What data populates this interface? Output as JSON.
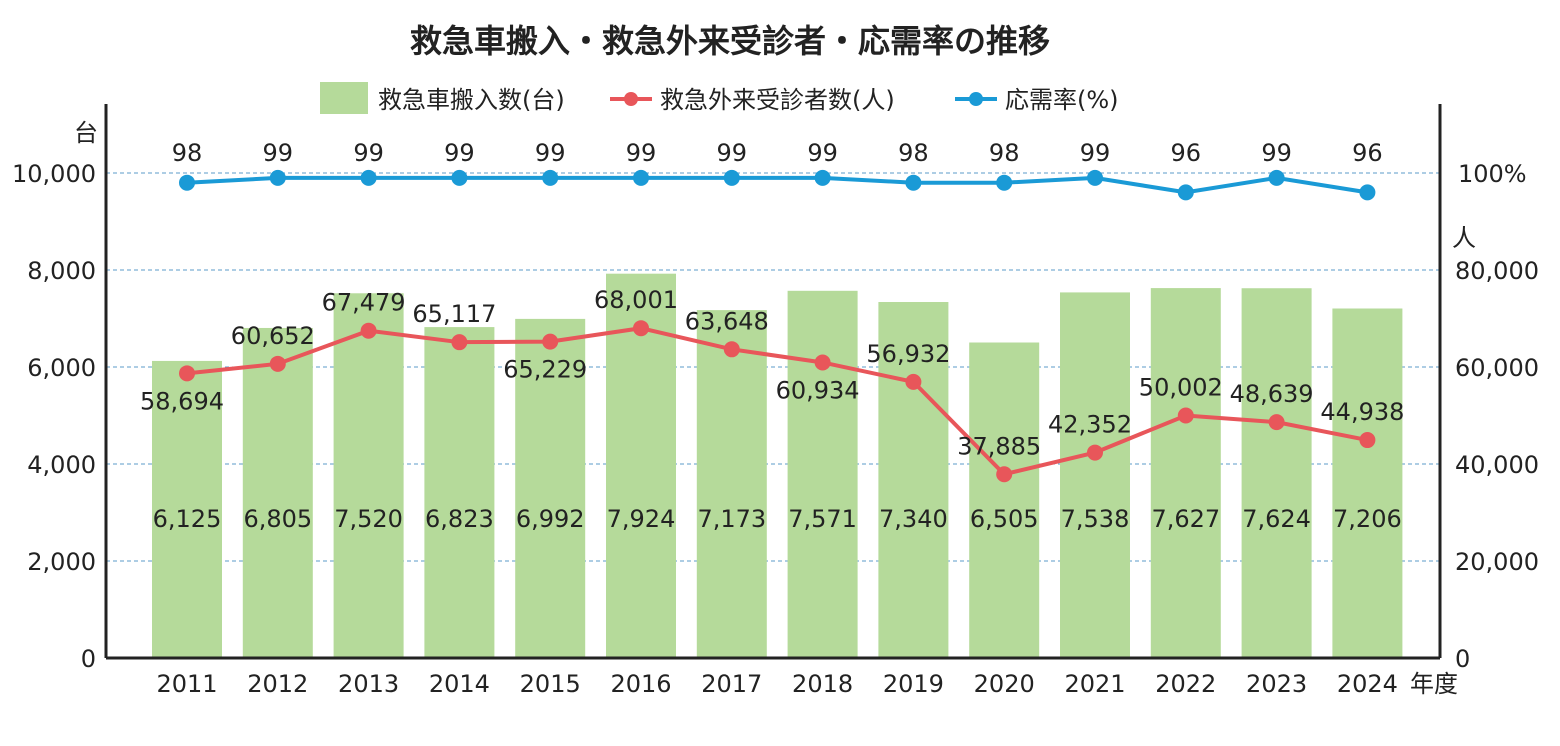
{
  "chart_data": {
    "type": "bar+line",
    "title": "救急車搬入・救急外来受診者・応需率の推移",
    "categories": [
      "2011",
      "2012",
      "2013",
      "2014",
      "2015",
      "2016",
      "2017",
      "2018",
      "2019",
      "2020",
      "2021",
      "2022",
      "2023",
      "2024"
    ],
    "xlabel": "年度",
    "y_left": {
      "label": "台",
      "range": [
        0,
        10000
      ],
      "ticks": [
        "0",
        "2,000",
        "4,000",
        "6,000",
        "8,000",
        "10,000"
      ]
    },
    "y_right": {
      "label": "人",
      "range": [
        0,
        100000
      ],
      "ticks": [
        "0",
        "20,000",
        "40,000",
        "60,000",
        "80,000"
      ],
      "percent_tick": "100%"
    },
    "grid": true,
    "legend_placement": "top",
    "series": [
      {
        "name": "救急車搬入数(台)",
        "type": "bar",
        "axis": "left",
        "color": "#b5da9a",
        "values": [
          6125,
          6805,
          7520,
          6823,
          6992,
          7924,
          7173,
          7571,
          7340,
          6505,
          7538,
          7627,
          7624,
          7206
        ],
        "labels": [
          "6,125",
          "6,805",
          "7,520",
          "6,823",
          "6,992",
          "7,924",
          "7,173",
          "7,571",
          "7,340",
          "6,505",
          "7,538",
          "7,627",
          "7,624",
          "7,206"
        ]
      },
      {
        "name": "救急外来受診者数(人)",
        "type": "line",
        "axis": "right",
        "color": "#e8565a",
        "values": [
          58694,
          60652,
          67479,
          65117,
          65229,
          68001,
          63648,
          60934,
          56932,
          37885,
          42352,
          50002,
          48639,
          44938
        ],
        "labels": [
          "58,694",
          "60,652",
          "67,479",
          "65,117",
          "65,229",
          "68,001",
          "63,648",
          "60,934",
          "56,932",
          "37,885",
          "42,352",
          "50,002",
          "48,639",
          "44,938"
        ]
      },
      {
        "name": "応需率(%)",
        "type": "line",
        "axis": "right-percent",
        "color": "#1a9ad6",
        "values": [
          98,
          99,
          99,
          99,
          99,
          99,
          99,
          99,
          98,
          98,
          99,
          96,
          99,
          96
        ],
        "labels": [
          "98",
          "99",
          "99",
          "99",
          "99",
          "99",
          "99",
          "99",
          "98",
          "98",
          "99",
          "96",
          "99",
          "96"
        ]
      }
    ]
  }
}
